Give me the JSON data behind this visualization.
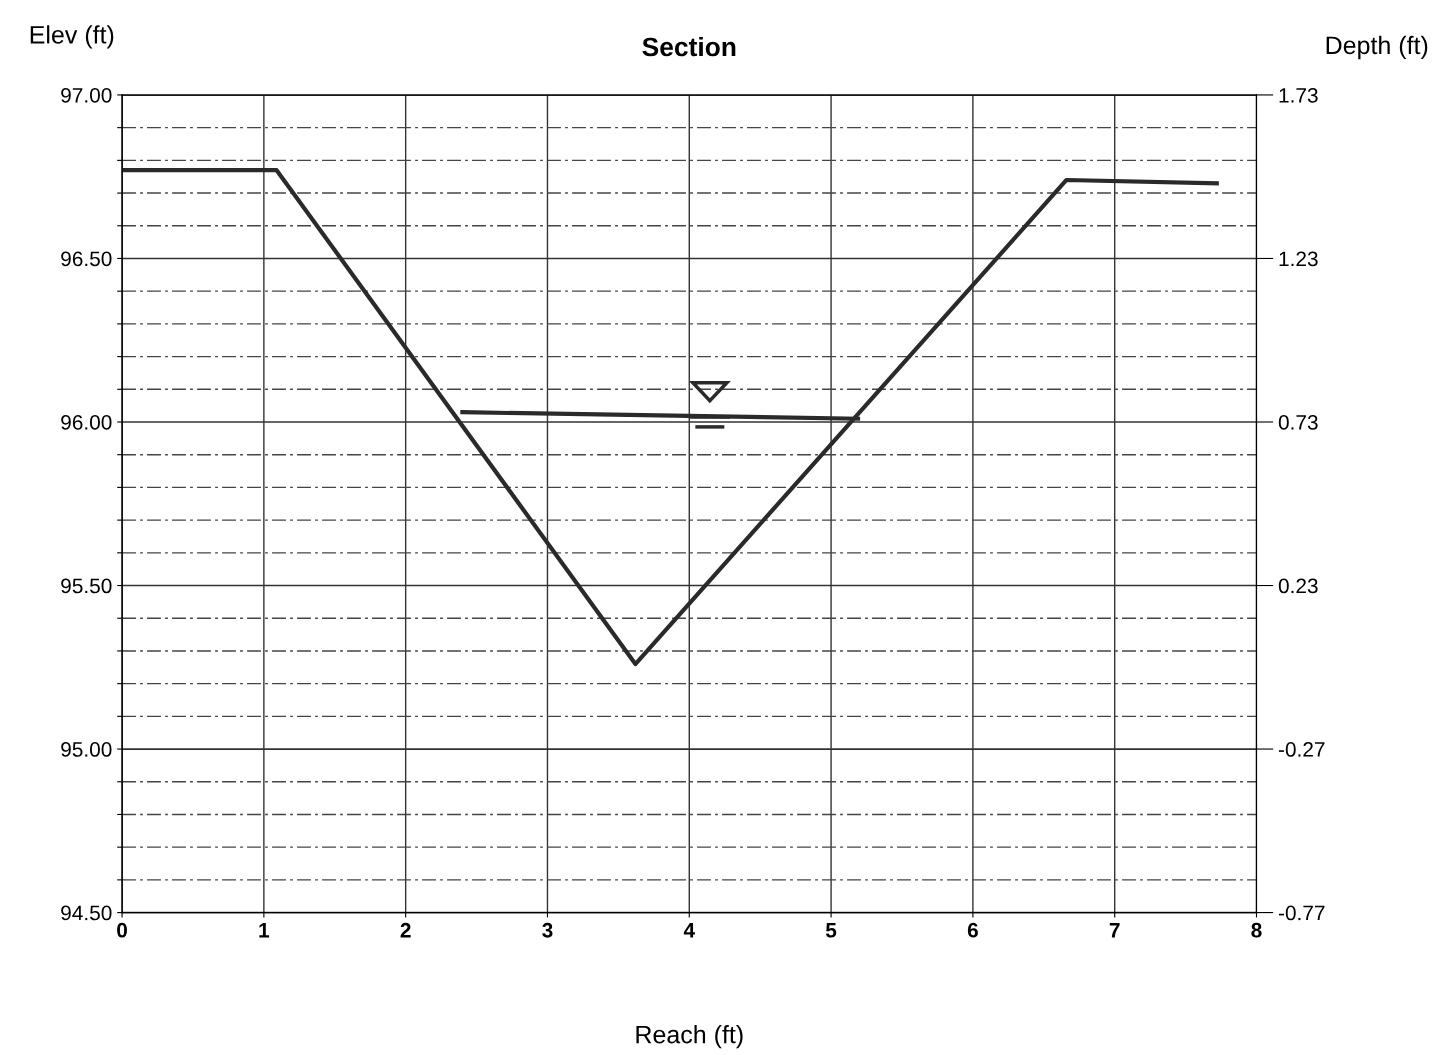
{
  "chart_data": {
    "type": "line",
    "title": "Section",
    "xlabel": "Reach (ft)",
    "ylabel": "Elev (ft)",
    "y2label": "Depth (ft)",
    "series": [
      {
        "x": [
          0,
          1.09,
          3.62,
          6.66,
          7.72
        ],
        "values": [
          96.77,
          96.77,
          95.26,
          96.74,
          96.73
        ],
        "color": "#2a2a2a"
      },
      {
        "x": [
          2.4,
          5.19
        ],
        "values": [
          96.03,
          96.01
        ],
        "color": "#2a2a2a"
      }
    ],
    "xlim": [
      0,
      8
    ],
    "xticks": [
      0,
      1,
      2,
      3,
      4,
      5,
      6,
      7,
      8
    ],
    "ylim": [
      94.5,
      97.0
    ],
    "yticks": [
      {
        "value": 94.5,
        "label": "94.50"
      },
      {
        "value": 94.6,
        "label": null
      },
      {
        "value": 94.7,
        "label": null
      },
      {
        "value": 94.8,
        "label": null
      },
      {
        "value": 94.9,
        "label": null
      },
      {
        "value": 95.0,
        "label": "95.00"
      },
      {
        "value": 95.1,
        "label": null
      },
      {
        "value": 95.2,
        "label": null
      },
      {
        "value": 95.3,
        "label": null
      },
      {
        "value": 95.4,
        "label": null
      },
      {
        "value": 95.5,
        "label": "95.50"
      },
      {
        "value": 95.6,
        "label": null
      },
      {
        "value": 95.7,
        "label": null
      },
      {
        "value": 95.8,
        "label": null
      },
      {
        "value": 95.9,
        "label": null
      },
      {
        "value": 96.0,
        "label": "96.00"
      },
      {
        "value": 96.1,
        "label": null
      },
      {
        "value": 96.2,
        "label": null
      },
      {
        "value": 96.3,
        "label": null
      },
      {
        "value": 96.4,
        "label": null
      },
      {
        "value": 96.5,
        "label": "96.50"
      },
      {
        "value": 96.6,
        "label": null
      },
      {
        "value": 96.7,
        "label": null
      },
      {
        "value": 96.8,
        "label": null
      },
      {
        "value": 96.9,
        "label": null
      },
      {
        "value": 97.0,
        "label": "97.00"
      }
    ],
    "y2lim": [
      -0.77,
      1.73
    ],
    "y2ticks": [
      -0.77,
      -0.27,
      0.23,
      0.73,
      1.23,
      1.73
    ],
    "grid": true,
    "line_style": "solid",
    "marker": "none"
  }
}
